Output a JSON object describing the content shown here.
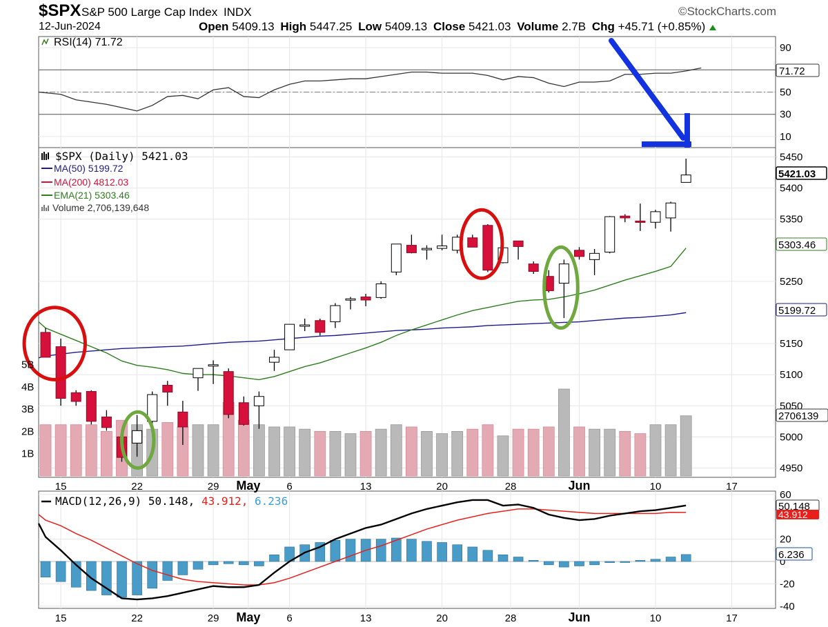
{
  "header": {
    "symbol": "$SPX",
    "name": "S&P 500 Large Cap Index",
    "exchange": "INDX",
    "brand": "©StockCharts.com",
    "date": "12-Jun-2024",
    "open_label": "Open",
    "open": "5409.13",
    "high_label": "High",
    "high": "5447.25",
    "low_label": "Low",
    "low": "5409.13",
    "close_label": "Close",
    "close": "5421.03",
    "volume_label": "Volume",
    "volume": "2.7B",
    "chg_label": "Chg",
    "chg": "+45.71 (+0.85%)"
  },
  "colors": {
    "up": "#ffffff",
    "down": "#d6103a",
    "black": "#000000",
    "ma50": "#1b1b8a",
    "ma200": "#d6103a",
    "ema21": "#2e7d1e",
    "vol_up": "#b9b9b9",
    "vol_down": "#e3aab4",
    "macd": "#000000",
    "signal": "#e8201c",
    "hist": "#4a9cc8",
    "arrow": "#1433e0",
    "circle_red": "#d90f0f",
    "circle_green": "#6ea83f"
  },
  "rsi_panel": {
    "legend": "RSI(14) 71.72",
    "current": "71.72",
    "ticks": [
      "90",
      "70",
      "50",
      "30",
      "10"
    ]
  },
  "price_panel": {
    "legend": "$SPX (Daily) 5421.03",
    "ma50_legend": "MA(50) 5199.72",
    "ma200_legend": "MA(200) 4812.03",
    "ema21_legend": "EMA(21) 5303.46",
    "volume_legend": "Volume 2,706,139,648",
    "price_ticks": [
      "5450",
      "5400",
      "5350",
      "5250",
      "5150",
      "5100",
      "5050",
      "5000",
      "4950"
    ],
    "volume_ticks": [
      "5B",
      "4B",
      "3B",
      "2B",
      "1B"
    ],
    "tag_close": "5421.03",
    "tag_ema21": "5303.46",
    "tag_ma50": "5199.72",
    "tag_volume": "2706139"
  },
  "macd_panel": {
    "legend_name": "MACD(12,26,9)",
    "legend_macd": "50.148,",
    "legend_signal": "43.912,",
    "legend_hist": "6.236",
    "ticks": [
      "60",
      "20",
      "0",
      "-20",
      "-40"
    ],
    "tag_macd": "50.148",
    "tag_signal": "43.912",
    "tag_hist": "6.236"
  },
  "x_axis": {
    "labels": [
      {
        "text": "15",
        "idx": 1
      },
      {
        "text": "22",
        "idx": 6
      },
      {
        "text": "29",
        "idx": 11
      },
      {
        "text": "May",
        "idx": 13.3
      },
      {
        "text": "6",
        "idx": 16
      },
      {
        "text": "13",
        "idx": 21
      },
      {
        "text": "20",
        "idx": 26
      },
      {
        "text": "28",
        "idx": 30.5
      },
      {
        "text": "Jun",
        "idx": 35
      },
      {
        "text": "10",
        "idx": 40
      },
      {
        "text": "17",
        "idx": 45
      }
    ]
  },
  "chart_data": {
    "type": "candlestick",
    "title": "$SPX S&P 500 Large Cap Index INDX",
    "date": "12-Jun-2024",
    "candles": [
      {
        "open": 5168,
        "high": 5175,
        "low": 5130,
        "close": 5128,
        "volume": 2.3
      },
      {
        "open": 5145,
        "high": 5158,
        "low": 5050,
        "close": 5062,
        "volume": 2.3
      },
      {
        "open": 5071,
        "high": 5075,
        "low": 5050,
        "close": 5057,
        "volume": 2.3
      },
      {
        "open": 5073,
        "high": 5075,
        "low": 5020,
        "close": 5025,
        "volume": 2.3
      },
      {
        "open": 5032,
        "high": 5043,
        "low": 5010,
        "close": 5015,
        "volume": 2.0
      },
      {
        "open": 5000,
        "high": 5012,
        "low": 4960,
        "close": 4967,
        "volume": 2.5
      },
      {
        "open": 4990,
        "high": 5035,
        "low": 4968,
        "close": 5010,
        "volume": 2.3
      },
      {
        "open": 5025,
        "high": 5073,
        "low": 5015,
        "close": 5068,
        "volume": 2.1
      },
      {
        "open": 5083,
        "high": 5090,
        "low": 5050,
        "close": 5072,
        "volume": 2.4
      },
      {
        "open": 5040,
        "high": 5058,
        "low": 4987,
        "close": 5016,
        "volume": 2.2
      },
      {
        "open": 5095,
        "high": 5110,
        "low": 5074,
        "close": 5110,
        "volume": 2.3
      },
      {
        "open": 5115,
        "high": 5123,
        "low": 5085,
        "close": 5116,
        "volume": 2.3
      },
      {
        "open": 5105,
        "high": 5110,
        "low": 5030,
        "close": 5036,
        "volume": 3.3
      },
      {
        "open": 5055,
        "high": 5065,
        "low": 5018,
        "close": 5020,
        "volume": 2.5
      },
      {
        "open": 5050,
        "high": 5073,
        "low": 5013,
        "close": 5065,
        "volume": 2.3
      },
      {
        "open": 5120,
        "high": 5140,
        "low": 5106,
        "close": 5128,
        "volume": 2.2
      },
      {
        "open": 5140,
        "high": 5180,
        "low": 5140,
        "close": 5181,
        "volume": 2.2
      },
      {
        "open": 5180,
        "high": 5190,
        "low": 5170,
        "close": 5180,
        "volume": 2.1
      },
      {
        "open": 5187,
        "high": 5190,
        "low": 5163,
        "close": 5168,
        "volume": 2.0
      },
      {
        "open": 5185,
        "high": 5215,
        "low": 5175,
        "close": 5211,
        "volume": 2.0
      },
      {
        "open": 5222,
        "high": 5225,
        "low": 5205,
        "close": 5222,
        "volume": 1.9
      },
      {
        "open": 5225,
        "high": 5230,
        "low": 5210,
        "close": 5220,
        "volume": 2.0
      },
      {
        "open": 5224,
        "high": 5250,
        "low": 5222,
        "close": 5246,
        "volume": 2.1
      },
      {
        "open": 5265,
        "high": 5310,
        "low": 5260,
        "close": 5310,
        "volume": 2.3
      },
      {
        "open": 5308,
        "high": 5325,
        "low": 5295,
        "close": 5296,
        "volume": 2.2
      },
      {
        "open": 5303,
        "high": 5308,
        "low": 5285,
        "close": 5303,
        "volume": 2.0
      },
      {
        "open": 5303,
        "high": 5325,
        "low": 5300,
        "close": 5307,
        "volume": 1.9
      },
      {
        "open": 5300,
        "high": 5325,
        "low": 5295,
        "close": 5321,
        "volume": 2.0
      },
      {
        "open": 5320,
        "high": 5325,
        "low": 5305,
        "close": 5305,
        "volume": 2.1
      },
      {
        "open": 5340,
        "high": 5342,
        "low": 5265,
        "close": 5268,
        "volume": 2.3
      },
      {
        "open": 5280,
        "high": 5300,
        "low": 5279,
        "close": 5304,
        "volume": 1.8
      },
      {
        "open": 5315,
        "high": 5315,
        "low": 5285,
        "close": 5306,
        "volume": 2.1
      },
      {
        "open": 5278,
        "high": 5282,
        "low": 5262,
        "close": 5266,
        "volume": 2.1
      },
      {
        "open": 5258,
        "high": 5268,
        "low": 5232,
        "close": 5235,
        "volume": 2.2
      },
      {
        "open": 5247,
        "high": 5285,
        "low": 5191,
        "close": 5278,
        "volume": 3.9
      },
      {
        "open": 5300,
        "high": 5305,
        "low": 5285,
        "close": 5290,
        "volume": 2.2
      },
      {
        "open": 5285,
        "high": 5302,
        "low": 5260,
        "close": 5295,
        "volume": 2.1
      },
      {
        "open": 5297,
        "high": 5355,
        "low": 5295,
        "close": 5354,
        "volume": 2.1
      },
      {
        "open": 5355,
        "high": 5358,
        "low": 5345,
        "close": 5352,
        "volume": 2.0
      },
      {
        "open": 5347,
        "high": 5375,
        "low": 5331,
        "close": 5346,
        "volume": 1.9
      },
      {
        "open": 5345,
        "high": 5365,
        "low": 5335,
        "close": 5362,
        "volume": 2.3
      },
      {
        "open": 5352,
        "high": 5378,
        "low": 5330,
        "close": 5376,
        "volume": 2.3
      },
      {
        "open": 5409.13,
        "high": 5447.25,
        "low": 5409.13,
        "close": 5421.03,
        "volume": 2.7
      }
    ],
    "volume_units": "B",
    "ma50": [
      5130,
      5133,
      5136,
      5138,
      5140,
      5142,
      5143,
      5144,
      5145,
      5146,
      5148,
      5150,
      5152,
      5153,
      5154,
      5156,
      5158,
      5160,
      5162,
      5163,
      5165,
      5167,
      5169,
      5171,
      5172,
      5173,
      5175,
      5176,
      5177,
      5179,
      5180,
      5181,
      5182,
      5183,
      5184,
      5185,
      5187,
      5189,
      5191,
      5192,
      5194,
      5196,
      5199.72
    ],
    "ema21": [
      5175,
      5165,
      5155,
      5145,
      5135,
      5122,
      5115,
      5112,
      5108,
      5102,
      5100,
      5100,
      5098,
      5095,
      5092,
      5097,
      5105,
      5113,
      5119,
      5127,
      5135,
      5143,
      5152,
      5163,
      5172,
      5180,
      5188,
      5196,
      5203,
      5208,
      5213,
      5218,
      5220,
      5221,
      5225,
      5230,
      5236,
      5244,
      5252,
      5259,
      5266,
      5274,
      5303.46
    ],
    "rsi": [
      48,
      43,
      41,
      39,
      36,
      33,
      38,
      46,
      47,
      44,
      52,
      54,
      46,
      45,
      52,
      57,
      60,
      60,
      61,
      62,
      62,
      64,
      66,
      68,
      68,
      67,
      67,
      67,
      65,
      61,
      64,
      63,
      58,
      55,
      59,
      59,
      60,
      66,
      66,
      67,
      67,
      69,
      71.72
    ],
    "macd": [
      22,
      10,
      -3,
      -15,
      -24,
      -33,
      -34,
      -33,
      -31,
      -28,
      -25,
      -22,
      -23,
      -23,
      -21,
      -10,
      0,
      8,
      13,
      20,
      25,
      30,
      33,
      38,
      43,
      47,
      50,
      53,
      55,
      55,
      50,
      51,
      48,
      42,
      39,
      37,
      38,
      41,
      43,
      45,
      46,
      48,
      50.148
    ],
    "signal": [
      37,
      32,
      25,
      19,
      12,
      5,
      -2,
      -8,
      -12,
      -16,
      -18,
      -19,
      -20,
      -21,
      -21,
      -19,
      -15,
      -10,
      -5,
      0,
      5,
      10,
      14,
      19,
      24,
      29,
      33,
      37,
      40,
      43,
      45,
      47,
      47,
      46,
      45,
      44,
      43,
      43,
      43,
      43,
      43,
      44,
      43.912
    ],
    "hist": [
      -14,
      -18,
      -23,
      -26,
      -30,
      -32,
      -30,
      -24,
      -17,
      -12,
      -7,
      -3,
      -2,
      -3,
      -4,
      6,
      13,
      15,
      17,
      19,
      20,
      20,
      20,
      21,
      20,
      18,
      17,
      15,
      13,
      10,
      6,
      4,
      1,
      -3,
      -5,
      -4,
      -3,
      -1,
      0,
      1,
      2,
      4,
      6.236
    ],
    "rsi_levels": {
      "overbought": 70,
      "mid": 50,
      "oversold": 30
    },
    "price_range": [
      4935,
      5465
    ],
    "volume_range": [
      0,
      6.5
    ],
    "rsi_range": [
      0,
      100
    ],
    "macd_range": [
      -42,
      63
    ]
  },
  "annotations": {
    "circles": [
      {
        "color": "red",
        "idx": 0.6,
        "price": 5150,
        "rx_days": 2.0,
        "ry_price": 58
      },
      {
        "color": "green",
        "idx": 6.05,
        "price": 4995,
        "rx_days": 1.05,
        "ry_price": 45
      },
      {
        "color": "red",
        "idx": 28.6,
        "price": 5310,
        "rx_days": 1.35,
        "ry_price": 55
      },
      {
        "color": "green",
        "idx": 33.8,
        "price": 5240,
        "rx_days": 1.1,
        "ry_price": 65
      }
    ]
  }
}
